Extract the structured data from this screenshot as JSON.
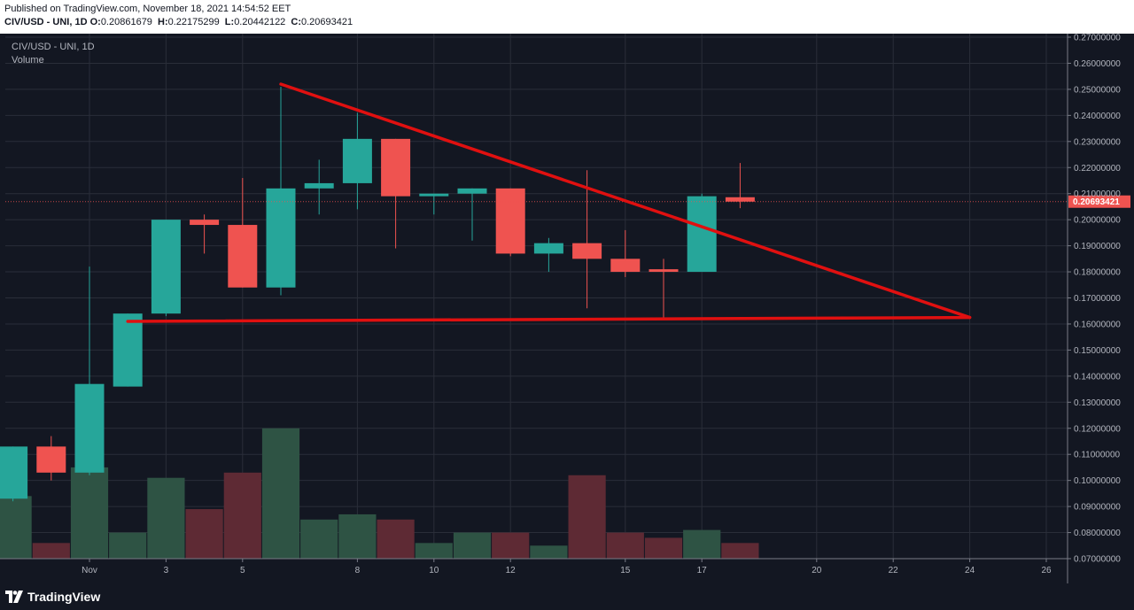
{
  "header": {
    "published": "Published on TradingView.com, November 18, 2021 14:54:52 EET",
    "symbol_line": "CIV/USD - UNI, 1D",
    "ohlc": [
      {
        "key": "O:",
        "value": "0.20861679"
      },
      {
        "key": "H:",
        "value": "0.22175299"
      },
      {
        "key": "L:",
        "value": "0.20442122"
      },
      {
        "key": "C:",
        "value": "0.20693421"
      }
    ]
  },
  "legend": {
    "symbol": "CIV/USD - UNI, 1D",
    "volume": "Volume"
  },
  "footer": {
    "brand": "TradingView"
  },
  "colors": {
    "background": "#131722",
    "grid": "#2a2e39",
    "up": "#26a69a",
    "down": "#ef5350",
    "volume_up": "#2e5344",
    "volume_down": "#5e2a34",
    "trendline": "#e01010",
    "price_label": "#ef5350"
  },
  "chart_data": {
    "type": "candlestick",
    "x_labels": [
      "Nov",
      "3",
      "5",
      "8",
      "10",
      "12",
      "15",
      "17",
      "20",
      "22",
      "24",
      "26"
    ],
    "y_ticks": [
      "0.27000000",
      "0.26000000",
      "0.25000000",
      "0.24000000",
      "0.23000000",
      "0.22000000",
      "0.21000000",
      "0.20000000",
      "0.19000000",
      "0.18000000",
      "0.17000000",
      "0.16000000",
      "0.15000000",
      "0.14000000",
      "0.13000000",
      "0.12000000",
      "0.11000000",
      "0.10000000",
      "0.09000000",
      "0.08000000",
      "0.07000000"
    ],
    "ylim": [
      0.07,
      0.27
    ],
    "last_price": 0.20693421,
    "last_price_label": "0.20693421",
    "candles": [
      {
        "date": "Oct 30",
        "open": 0.093,
        "high": 0.113,
        "low": 0.092,
        "close": 0.113,
        "volume_level": 0.094
      },
      {
        "date": "Oct 31",
        "open": 0.113,
        "high": 0.117,
        "low": 0.1,
        "close": 0.103,
        "volume_level": 0.076
      },
      {
        "date": "Nov 1",
        "open": 0.103,
        "high": 0.182,
        "low": 0.102,
        "close": 0.137,
        "volume_level": 0.105
      },
      {
        "date": "Nov 2",
        "open": 0.136,
        "high": 0.164,
        "low": 0.136,
        "close": 0.164,
        "volume_level": 0.08
      },
      {
        "date": "Nov 3",
        "open": 0.164,
        "high": 0.2,
        "low": 0.163,
        "close": 0.2,
        "volume_level": 0.101
      },
      {
        "date": "Nov 4",
        "open": 0.2,
        "high": 0.202,
        "low": 0.187,
        "close": 0.198,
        "volume_level": 0.089
      },
      {
        "date": "Nov 5",
        "open": 0.198,
        "high": 0.216,
        "low": 0.174,
        "close": 0.174,
        "volume_level": 0.103
      },
      {
        "date": "Nov 6",
        "open": 0.174,
        "high": 0.251,
        "low": 0.171,
        "close": 0.212,
        "volume_level": 0.12
      },
      {
        "date": "Nov 7",
        "open": 0.212,
        "high": 0.223,
        "low": 0.202,
        "close": 0.214,
        "volume_level": 0.085
      },
      {
        "date": "Nov 8",
        "open": 0.214,
        "high": 0.241,
        "low": 0.204,
        "close": 0.231,
        "volume_level": 0.087
      },
      {
        "date": "Nov 9",
        "open": 0.231,
        "high": 0.231,
        "low": 0.189,
        "close": 0.209,
        "volume_level": 0.085
      },
      {
        "date": "Nov 10",
        "open": 0.209,
        "high": 0.21,
        "low": 0.202,
        "close": 0.21,
        "volume_level": 0.076
      },
      {
        "date": "Nov 11",
        "open": 0.21,
        "high": 0.212,
        "low": 0.192,
        "close": 0.212,
        "volume_level": 0.08
      },
      {
        "date": "Nov 12",
        "open": 0.212,
        "high": 0.212,
        "low": 0.186,
        "close": 0.187,
        "volume_level": 0.08
      },
      {
        "date": "Nov 13",
        "open": 0.187,
        "high": 0.193,
        "low": 0.18,
        "close": 0.191,
        "volume_level": 0.075
      },
      {
        "date": "Nov 14",
        "open": 0.191,
        "high": 0.219,
        "low": 0.166,
        "close": 0.185,
        "volume_level": 0.102
      },
      {
        "date": "Nov 15",
        "open": 0.185,
        "high": 0.196,
        "low": 0.178,
        "close": 0.18,
        "volume_level": 0.08
      },
      {
        "date": "Nov 16",
        "open": 0.181,
        "high": 0.185,
        "low": 0.162,
        "close": 0.18,
        "volume_level": 0.078
      },
      {
        "date": "Nov 17",
        "open": 0.18,
        "high": 0.21,
        "low": 0.18,
        "close": 0.209,
        "volume_level": 0.081
      },
      {
        "date": "Nov 18",
        "open": 0.20861679,
        "high": 0.22175299,
        "low": 0.20442122,
        "close": 0.20693421,
        "volume_level": 0.076
      }
    ],
    "trendlines": [
      {
        "name": "descending-resistance",
        "from": {
          "date": "Nov 6",
          "price": 0.252
        },
        "to": {
          "date": "Nov 24",
          "price": 0.1625
        }
      },
      {
        "name": "horizontal-support",
        "from": {
          "date": "Nov 2",
          "price": 0.161
        },
        "to": {
          "date": "Nov 24",
          "price": 0.1625
        }
      }
    ]
  }
}
